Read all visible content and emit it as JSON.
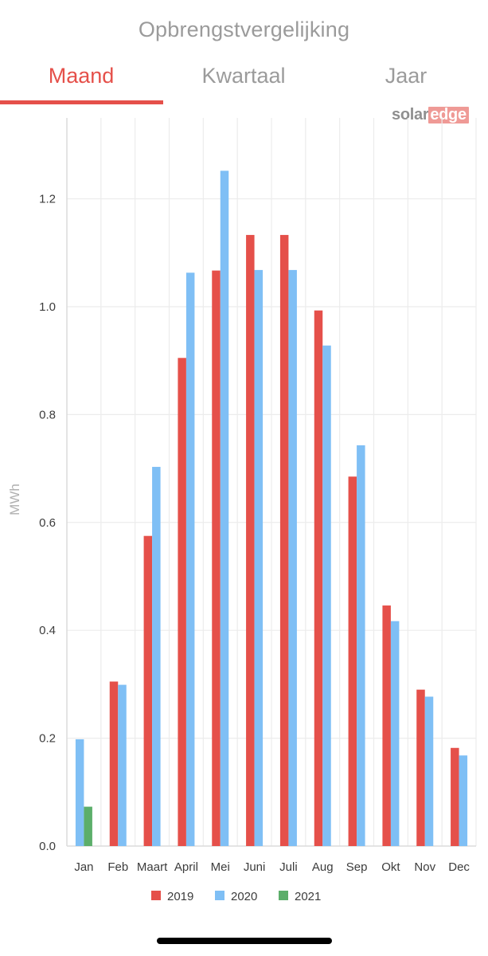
{
  "header": {
    "title": "Opbrengstvergelijking"
  },
  "tabs": [
    {
      "label": "Maand",
      "active": true
    },
    {
      "label": "Kwartaal",
      "active": false
    },
    {
      "label": "Jaar",
      "active": false
    }
  ],
  "logo": {
    "part1": "solar",
    "part2": "edge"
  },
  "colors": {
    "accent": "#e5504a",
    "series_2019": "#e5504a",
    "series_2020": "#7fbff5",
    "series_2021": "#5cae6a",
    "muted_text": "#9b9b9b"
  },
  "chart_data": {
    "type": "bar",
    "title": "",
    "xlabel": "",
    "ylabel": "MWh",
    "ylim": [
      0,
      1.35
    ],
    "yticks": [
      "0.0",
      "0.2",
      "0.4",
      "0.6",
      "0.8",
      "1.0",
      "1.2"
    ],
    "categories": [
      "Jan",
      "Feb",
      "Maart",
      "April",
      "Mei",
      "Juni",
      "Juli",
      "Aug",
      "Sep",
      "Okt",
      "Nov",
      "Dec"
    ],
    "series": [
      {
        "name": "2019",
        "color": "#e5504a",
        "values": [
          null,
          0.305,
          0.575,
          0.905,
          1.067,
          1.133,
          1.133,
          0.993,
          0.685,
          0.446,
          0.29,
          0.182
        ]
      },
      {
        "name": "2020",
        "color": "#7fbff5",
        "values": [
          0.198,
          0.299,
          0.703,
          1.063,
          1.252,
          1.068,
          1.068,
          0.928,
          0.743,
          0.417,
          0.277,
          0.168
        ]
      },
      {
        "name": "2021",
        "color": "#5cae6a",
        "values": [
          0.073,
          null,
          null,
          null,
          null,
          null,
          null,
          null,
          null,
          null,
          null,
          null
        ]
      }
    ],
    "legend_position": "bottom-center",
    "grid": true
  }
}
